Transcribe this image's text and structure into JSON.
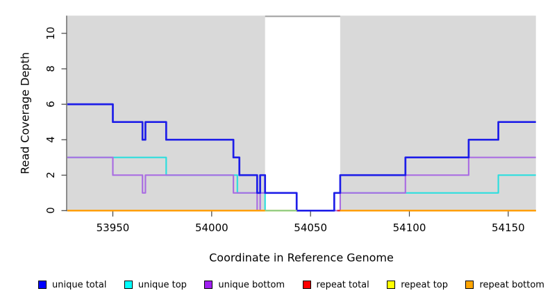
{
  "y_axis": {
    "label": "Read Coverage Depth",
    "ticks": [
      "0",
      "2",
      "4",
      "6",
      "8",
      "10"
    ]
  },
  "x_axis": {
    "label": "Coordinate in Reference Genome",
    "ticks": [
      "53950",
      "54000",
      "54050",
      "54100",
      "54150"
    ]
  },
  "legend": {
    "items": [
      {
        "label": "unique total",
        "color": "#0000ff"
      },
      {
        "label": "unique top",
        "color": "#00ffff"
      },
      {
        "label": "unique bottom",
        "color": "#a020f0"
      },
      {
        "label": "repeat total",
        "color": "#ff0000"
      },
      {
        "label": "repeat top",
        "color": "#ffff00"
      },
      {
        "label": "repeat bottom",
        "color": "#ffa500"
      }
    ]
  },
  "chart_data": {
    "type": "line",
    "step": true,
    "title": "",
    "xlabel": "Coordinate in Reference Genome",
    "ylabel": "Read Coverage Depth",
    "xlim": [
      53927,
      54164
    ],
    "ylim": [
      0,
      11
    ],
    "x_ticks": [
      53950,
      54000,
      54050,
      54100,
      54150
    ],
    "y_ticks": [
      0,
      2,
      4,
      6,
      8,
      10
    ],
    "grid": false,
    "legend_position": "bottom",
    "plot_bg": "#d9d9d9",
    "gap_band": {
      "x1": 54027,
      "x2": 54065,
      "color": "#ffffff",
      "top_edge_color": "#9c9c9c"
    },
    "series": [
      {
        "name": "unique top",
        "line_color": "#2edede",
        "width": 2.2,
        "segments": [
          [
            [
              53927,
              3
            ],
            [
              53977,
              3
            ],
            [
              53977,
              2
            ],
            [
              54013,
              2
            ],
            [
              54013,
              1
            ],
            [
              54027,
              1
            ],
            [
              54027,
              0
            ],
            [
              54062,
              0
            ],
            [
              54062,
              1
            ],
            [
              54145,
              1
            ],
            [
              54145,
              2
            ],
            [
              54164,
              2
            ]
          ]
        ]
      },
      {
        "name": "unique bottom",
        "line_color": "#aa6ee2",
        "width": 2.2,
        "segments": [
          [
            [
              53927,
              3
            ],
            [
              53950,
              3
            ],
            [
              53950,
              2
            ],
            [
              53965,
              2
            ],
            [
              53965,
              1
            ],
            [
              53966.5,
              1
            ],
            [
              53966.5,
              2
            ],
            [
              54011,
              2
            ],
            [
              54011,
              1
            ],
            [
              54023,
              1
            ],
            [
              54023,
              0
            ],
            [
              54024.5,
              0
            ],
            [
              54024.5,
              1
            ],
            [
              54043,
              1
            ],
            [
              54043,
              0
            ],
            [
              54065,
              0
            ],
            [
              54065,
              1
            ],
            [
              54098,
              1
            ],
            [
              54098,
              2
            ],
            [
              54130,
              2
            ],
            [
              54130,
              3
            ],
            [
              54164,
              3
            ]
          ]
        ]
      },
      {
        "name": "unique total",
        "line_color": "#1d1de8",
        "width": 2.7,
        "segments": [
          [
            [
              53927,
              6
            ],
            [
              53950,
              6
            ],
            [
              53950,
              5
            ],
            [
              53965,
              5
            ],
            [
              53965,
              4
            ],
            [
              53966.5,
              4
            ],
            [
              53966.5,
              5
            ],
            [
              53977,
              5
            ],
            [
              53977,
              4
            ],
            [
              54011,
              4
            ],
            [
              54011,
              3
            ],
            [
              54014,
              3
            ],
            [
              54014,
              2
            ],
            [
              54023,
              2
            ],
            [
              54023,
              1
            ],
            [
              54024.5,
              1
            ],
            [
              54024.5,
              2
            ],
            [
              54027,
              2
            ],
            [
              54027,
              1
            ],
            [
              54043,
              1
            ],
            [
              54043,
              0
            ],
            [
              54062,
              0
            ],
            [
              54062,
              1
            ],
            [
              54065,
              1
            ],
            [
              54065,
              2
            ],
            [
              54098,
              2
            ],
            [
              54098,
              3
            ],
            [
              54130,
              3
            ],
            [
              54130,
              4
            ],
            [
              54145,
              4
            ],
            [
              54145,
              5
            ],
            [
              54164,
              5
            ]
          ]
        ]
      },
      {
        "name": "repeat total",
        "line_color": "#e32222",
        "width": 2.2,
        "segments": [
          [
            [
              53927,
              0
            ],
            [
              54043,
              0
            ]
          ],
          [
            [
              54063.5,
              0
            ],
            [
              54164,
              0
            ]
          ]
        ]
      },
      {
        "name": "repeat top",
        "line_color": "#ffff00",
        "width": 2.2,
        "segments": [
          [
            [
              53927,
              0
            ],
            [
              54043,
              0
            ]
          ],
          [
            [
              54065,
              0
            ],
            [
              54164,
              0
            ]
          ]
        ]
      },
      {
        "name": "repeat bottom",
        "line_color": "#ff9d00",
        "width": 2.4,
        "segments": [
          [
            [
              53927,
              0
            ],
            [
              54027,
              0
            ]
          ],
          [
            [
              54065,
              0
            ],
            [
              54164,
              0
            ]
          ]
        ]
      }
    ],
    "blend_segments": [
      {
        "x1": 54027,
        "x2": 54043,
        "y": 0,
        "color": "#8ecf8e"
      }
    ]
  }
}
